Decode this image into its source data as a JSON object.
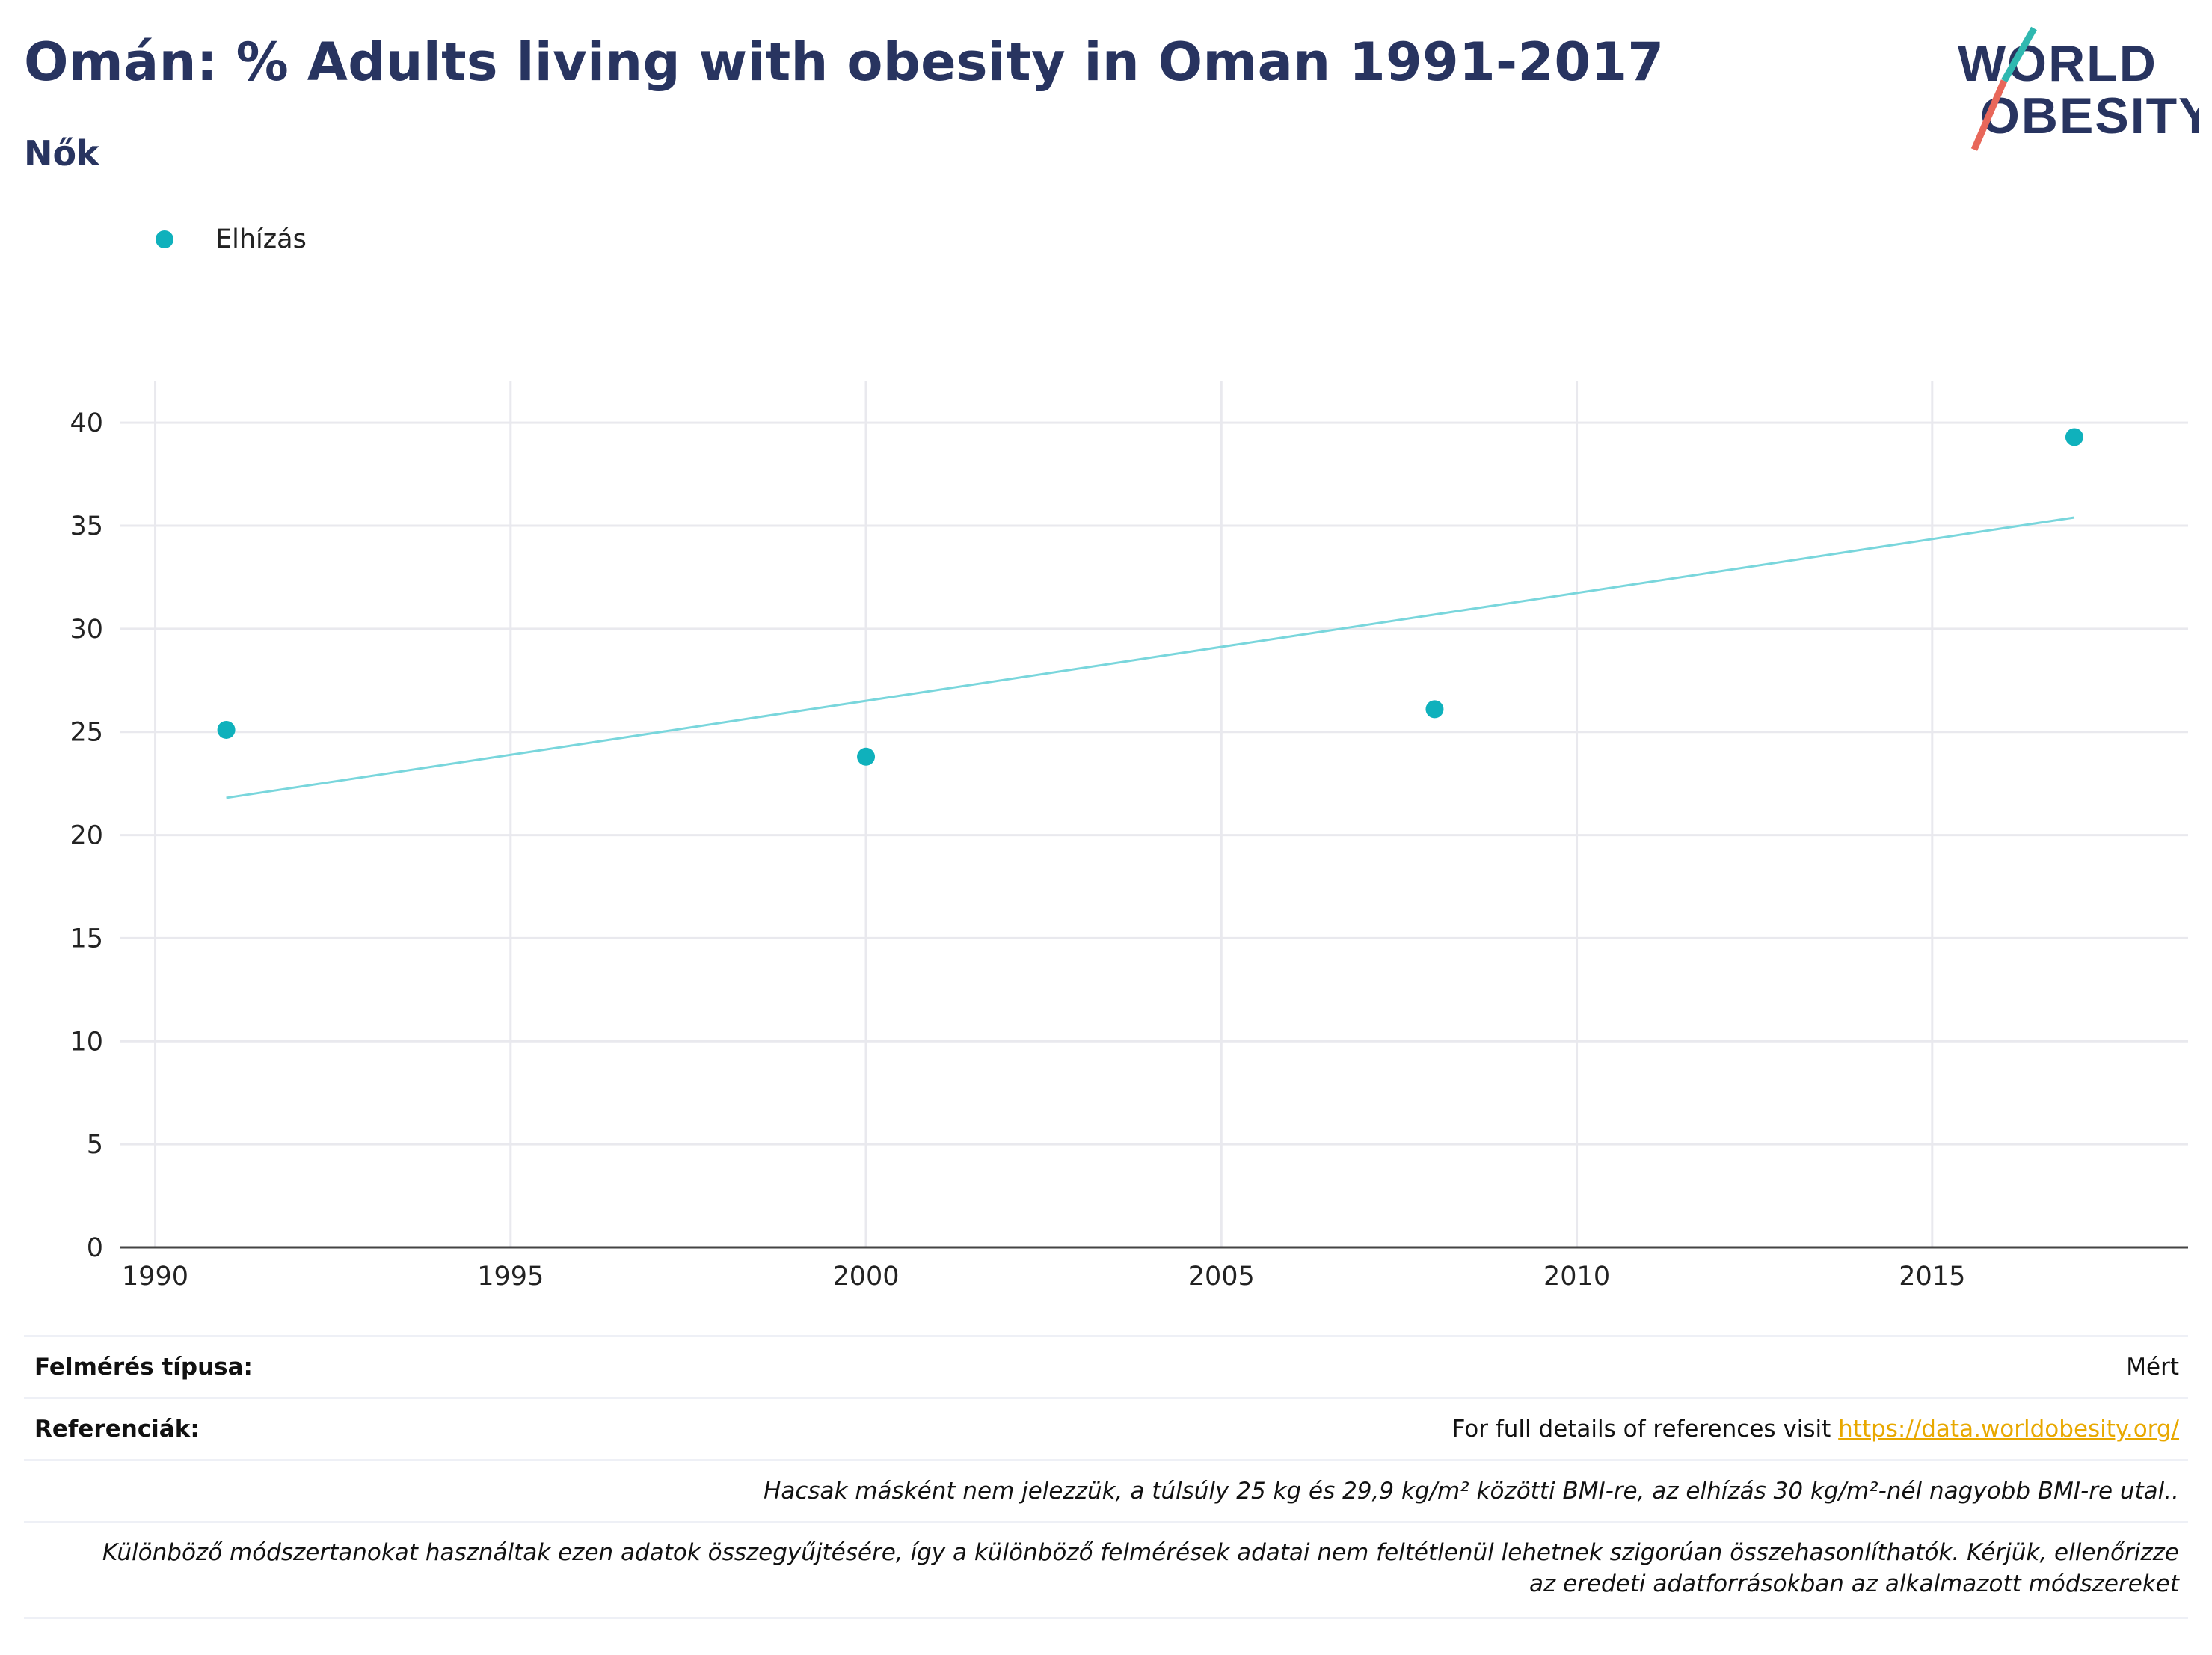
{
  "header": {
    "title": "Omán: % Adults living with obesity in Oman 1991-2017",
    "subtitle": "Nők"
  },
  "logo": {
    "line1": "WORLD",
    "line2": "OBESITY"
  },
  "legend": {
    "label": "Elhízás",
    "color": "#0fb1bc"
  },
  "colors": {
    "points": "#0fb1bc",
    "trend": "#79d6dc",
    "grid": "#e9e9ee",
    "axis": "#444444"
  },
  "chart_data": {
    "type": "scatter",
    "title": "Omán: % Adults living with obesity in Oman 1991-2017",
    "subtitle": "Nők",
    "xlabel": "",
    "ylabel": "",
    "x_ticks": [
      1990,
      1995,
      2000,
      2005,
      2010,
      2015
    ],
    "y_ticks": [
      0,
      5,
      10,
      15,
      20,
      25,
      30,
      35,
      40
    ],
    "xlim": [
      1989.5,
      2018.6
    ],
    "ylim": [
      0,
      42
    ],
    "grid": true,
    "legend_position": "top-left",
    "series": [
      {
        "name": "Elhízás",
        "x": [
          1991,
          2000,
          2008,
          2017
        ],
        "y": [
          25.1,
          23.8,
          26.1,
          39.3
        ]
      }
    ],
    "trendline": {
      "x": [
        1991,
        2017
      ],
      "y": [
        21.8,
        35.4
      ]
    }
  },
  "table": {
    "survey_type_label": "Felmérés típusa:",
    "survey_type_value": "Mért",
    "references_label": "Referenciák:",
    "references_text": "For full details of references visit ",
    "references_link": "https://data.worldobesity.org/",
    "note1": "Hacsak másként nem jelezzük, a túlsúly 25 kg és 29,9 kg/m² közötti BMI-re, az elhízás 30 kg/m²-nél nagyobb BMI-re utal..",
    "note2": "Különböző módszertanokat használtak ezen adatok összegyűjtésére, így a különböző felmérések adatai nem feltétlenül lehetnek szigorúan összehasonlíthatók. Kérjük, ellenőrizze az eredeti adatforrásokban az alkalmazott módszereket"
  }
}
